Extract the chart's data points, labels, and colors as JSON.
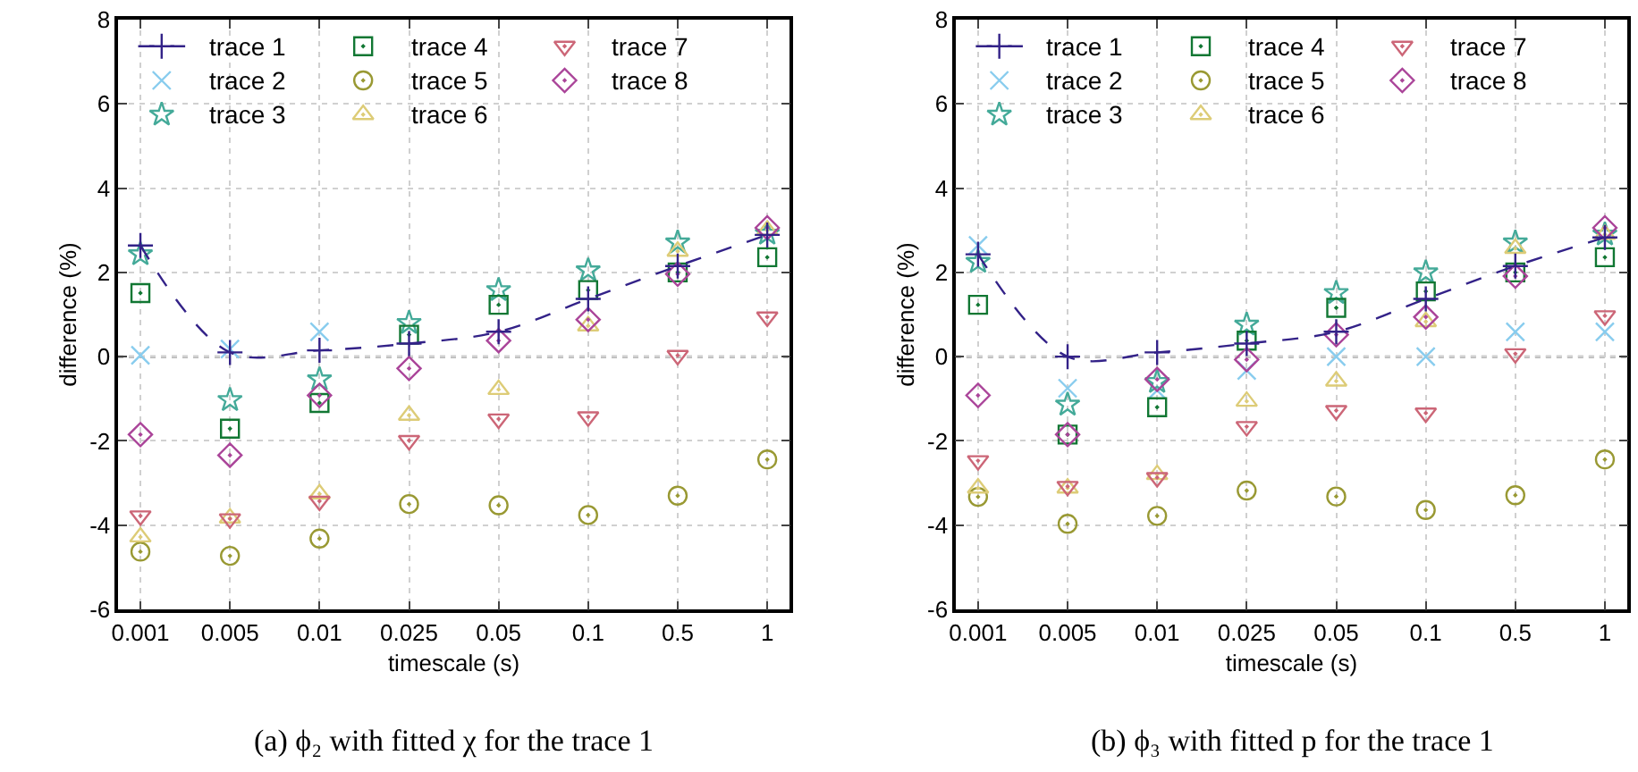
{
  "chart_data": [
    {
      "type": "scatter",
      "xlabel": "timescale (s)",
      "ylabel": "difference (%)",
      "categories": [
        "0.001",
        "0.005",
        "0.01",
        "0.025",
        "0.05",
        "0.1",
        "0.5",
        "1"
      ],
      "ylim": [
        -6,
        8
      ],
      "yticks": [
        -6,
        -4,
        -2,
        0,
        2,
        4,
        6,
        8
      ],
      "grid": true,
      "legend": "top left",
      "annotations": [
        "(a) ϕ₂ with fitted χ for the trace 1"
      ],
      "ref_lines": [
        {
          "axis": "y",
          "value": 0,
          "color": "#a0a0a0",
          "line_style": "dotted"
        }
      ],
      "series": [
        {
          "name": "trace 1",
          "type": "line",
          "line_style": "dashed",
          "marker": "cross",
          "color": "#332288",
          "values": [
            2.64,
            0.1,
            0.15,
            0.31,
            0.59,
            1.37,
            2.15,
            2.89
          ]
        },
        {
          "name": "trace 2",
          "marker": "x",
          "color": "#88ccee",
          "values": [
            0.03,
            0.18,
            0.59,
            null,
            null,
            null,
            null,
            null
          ]
        },
        {
          "name": "trace 3",
          "marker": "star",
          "color": "#44aa99",
          "values": [
            2.43,
            -1.03,
            -0.54,
            0.8,
            1.58,
            2.05,
            2.71,
            2.92
          ]
        },
        {
          "name": "trace 4",
          "marker": "square",
          "color": "#117733",
          "values": [
            1.51,
            -1.71,
            -1.1,
            0.52,
            1.23,
            1.58,
            2.0,
            2.36
          ]
        },
        {
          "name": "trace 5",
          "marker": "circle",
          "color": "#999933",
          "values": [
            -4.63,
            -4.73,
            -4.32,
            -3.5,
            -3.53,
            -3.76,
            -3.3,
            -2.44
          ]
        },
        {
          "name": "trace 6",
          "marker": "triangle",
          "color": "#ddcc77",
          "values": [
            -4.28,
            -3.83,
            -3.26,
            -1.39,
            -0.78,
            0.73,
            2.5,
            3.0
          ]
        },
        {
          "name": "trace 7",
          "marker": "triangle-down",
          "color": "#cc6677",
          "values": [
            -3.78,
            -3.85,
            -3.43,
            -1.99,
            -1.48,
            -1.43,
            0.03,
            0.94
          ]
        },
        {
          "name": "trace 8",
          "marker": "diamond",
          "color": "#aa4499",
          "values": [
            -1.85,
            -2.34,
            -0.92,
            -0.28,
            0.38,
            0.88,
            1.96,
            3.06
          ]
        }
      ]
    },
    {
      "type": "scatter",
      "xlabel": "timescale (s)",
      "ylabel": "difference (%)",
      "categories": [
        "0.001",
        "0.005",
        "0.01",
        "0.025",
        "0.05",
        "0.1",
        "0.5",
        "1"
      ],
      "ylim": [
        -6,
        8
      ],
      "yticks": [
        -6,
        -4,
        -2,
        0,
        2,
        4,
        6,
        8
      ],
      "grid": true,
      "legend": "top left",
      "annotations": [
        "(b) ϕ₃ with fitted p for the trace 1"
      ],
      "ref_lines": [
        {
          "axis": "y",
          "value": 0,
          "color": "#a0a0a0",
          "line_style": "dotted"
        }
      ],
      "series": [
        {
          "name": "trace 1",
          "type": "line",
          "line_style": "dashed",
          "marker": "cross",
          "color": "#332288",
          "values": [
            2.43,
            0.0,
            0.1,
            0.31,
            0.59,
            1.37,
            2.15,
            2.83
          ]
        },
        {
          "name": "trace 2",
          "marker": "x",
          "color": "#88ccee",
          "values": [
            2.64,
            -0.75,
            -0.8,
            -0.33,
            0.0,
            0.0,
            0.59,
            0.59
          ]
        },
        {
          "name": "trace 3",
          "marker": "star",
          "color": "#44aa99",
          "values": [
            2.25,
            -1.14,
            -0.6,
            0.76,
            1.51,
            2.0,
            2.71,
            2.9
          ]
        },
        {
          "name": "trace 4",
          "marker": "square",
          "color": "#117733",
          "values": [
            1.23,
            -1.85,
            -1.2,
            0.38,
            1.16,
            1.55,
            2.0,
            2.36
          ]
        },
        {
          "name": "trace 5",
          "marker": "circle",
          "color": "#999933",
          "values": [
            -3.33,
            -3.97,
            -3.78,
            -3.18,
            -3.32,
            -3.64,
            -3.29,
            -2.44
          ]
        },
        {
          "name": "trace 6",
          "marker": "triangle",
          "color": "#ddcc77",
          "values": [
            -3.12,
            -3.12,
            -2.8,
            -1.06,
            -0.58,
            0.83,
            2.57,
            2.9
          ]
        },
        {
          "name": "trace 7",
          "marker": "triangle-down",
          "color": "#cc6677",
          "values": [
            -2.47,
            -3.08,
            -2.87,
            -1.66,
            -1.28,
            -1.34,
            0.07,
            0.97
          ]
        },
        {
          "name": "trace 8",
          "marker": "diamond",
          "color": "#aa4499",
          "values": [
            -0.92,
            -1.85,
            -0.54,
            -0.07,
            0.52,
            0.94,
            1.91,
            3.06
          ]
        }
      ]
    }
  ]
}
